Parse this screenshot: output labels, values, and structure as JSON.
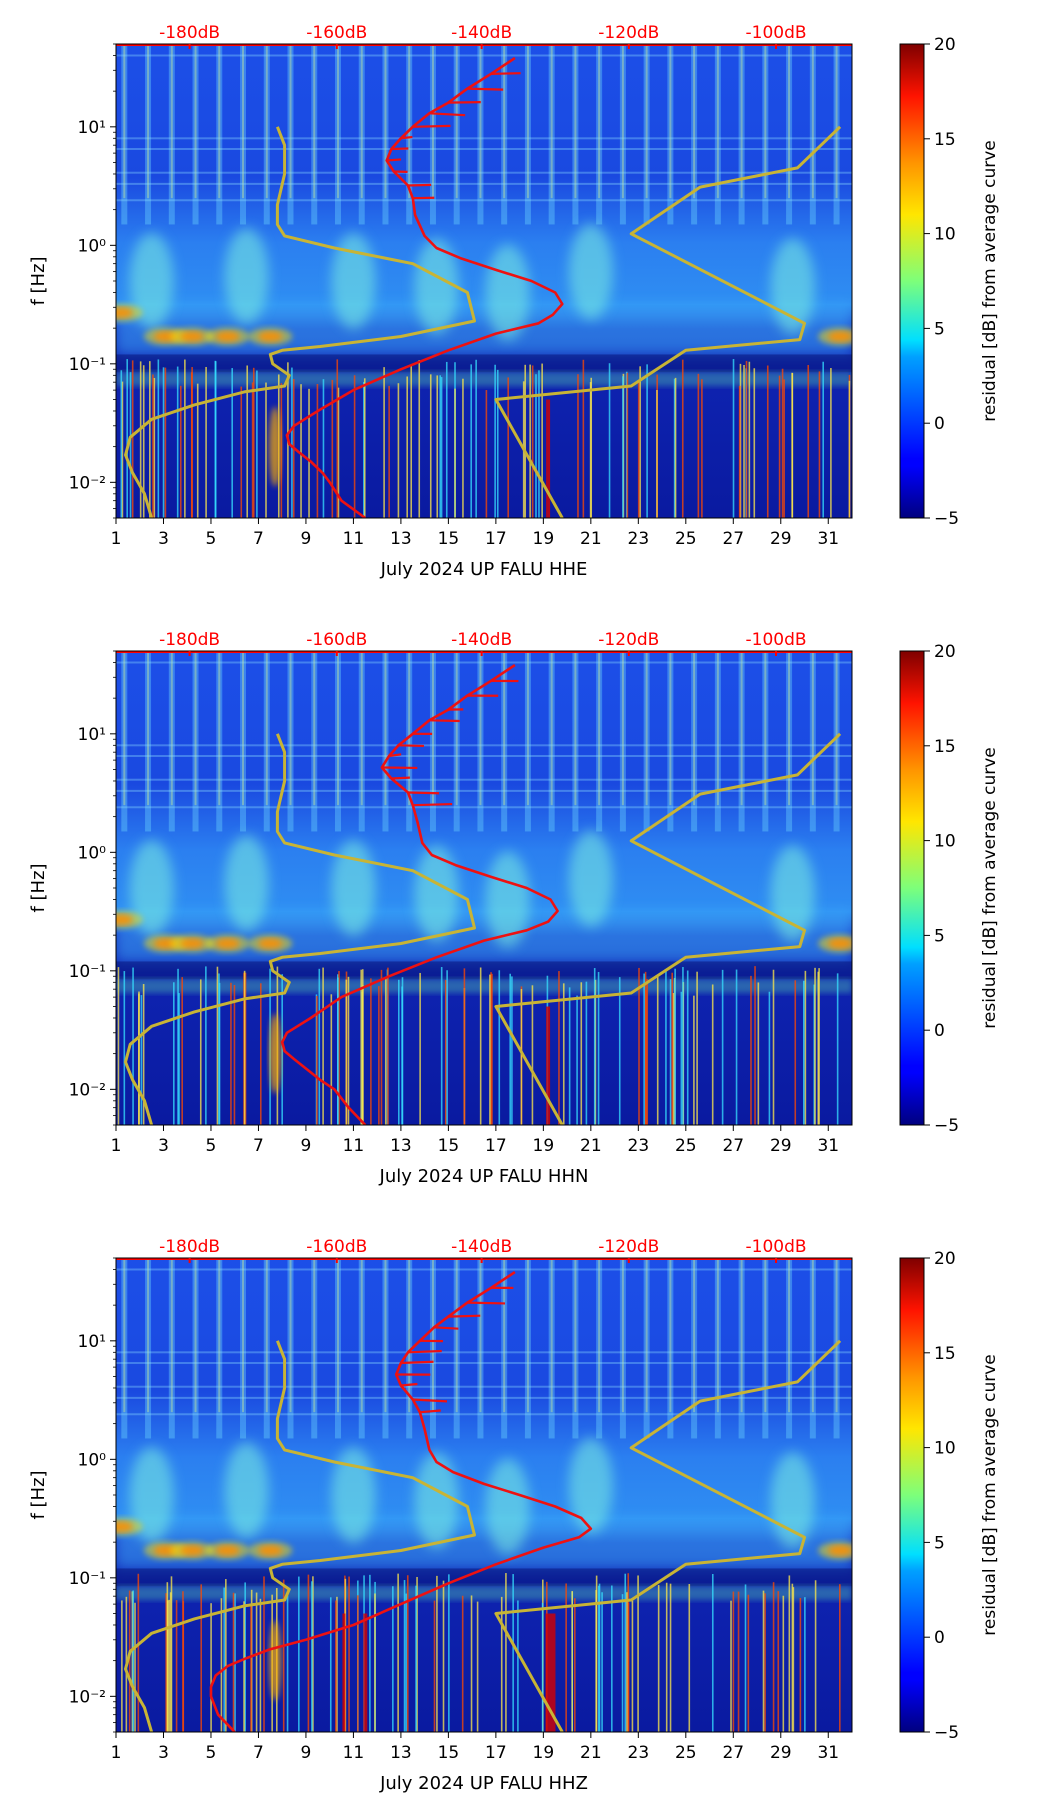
{
  "colors": {
    "db_scale": "#ff0000",
    "red_curve": "#ee1111",
    "model_curve": "#c8b435",
    "axis": "#000000"
  },
  "colormap": "jet",
  "chart_data": [
    {
      "type": "heatmap",
      "component": "HHE",
      "xlabel": "July 2024 UP FALU  HHE",
      "ylabel": "f [Hz]",
      "x_ticks": [
        1,
        3,
        5,
        7,
        9,
        11,
        13,
        15,
        17,
        19,
        21,
        23,
        25,
        27,
        29,
        31
      ],
      "xlim": [
        1,
        32
      ],
      "ylim": [
        0.005,
        50
      ],
      "y_ticks": [
        {
          "value": 0.01,
          "label": "10⁻²"
        },
        {
          "value": 0.1,
          "label": "10⁻¹"
        },
        {
          "value": 1,
          "label": "10⁰"
        },
        {
          "value": 10,
          "label": "10¹"
        }
      ],
      "top_axis": {
        "labels": [
          "-180dB",
          "-160dB",
          "-140dB",
          "-120dB",
          "-100dB"
        ],
        "positions_day": [
          4.1,
          10.3,
          16.4,
          22.6,
          28.8
        ]
      },
      "colorbar": {
        "label": "residual [dB] from average curve",
        "range": [
          -5,
          20
        ],
        "ticks": [
          -5,
          0,
          5,
          10,
          15,
          20
        ]
      },
      "red_curve": {
        "day": [
          11.5,
          10.5,
          10,
          9.7,
          9.2,
          8.7,
          8.3,
          8.2,
          8.5,
          9.5,
          11,
          13,
          15,
          17,
          18.8,
          19.4,
          19.8,
          19.5,
          18.5,
          17,
          15.5,
          14.5,
          14,
          13.6,
          13.5,
          13.3,
          12.7,
          12.4,
          12.6,
          13,
          13.5,
          14.2,
          15,
          15.8,
          16.8,
          17.8
        ],
        "freq": [
          0.005,
          0.007,
          0.01,
          0.012,
          0.015,
          0.018,
          0.021,
          0.025,
          0.03,
          0.04,
          0.06,
          0.09,
          0.13,
          0.18,
          0.22,
          0.26,
          0.32,
          0.4,
          0.5,
          0.62,
          0.78,
          0.95,
          1.2,
          1.8,
          2.5,
          3.2,
          4.2,
          5.2,
          6.5,
          8,
          10,
          13,
          16,
          21,
          28,
          38
        ]
      },
      "model_curves": [
        {
          "day": [
            2.5,
            2.2,
            1.7,
            1.4,
            1.6,
            2.5,
            4.3,
            6.4,
            8.1,
            8.3,
            7.6,
            7.5,
            8,
            9.6,
            13,
            16.1,
            15.8,
            13.5,
            10.2,
            8.1,
            7.8,
            7.8,
            8.1,
            8.1,
            7.8
          ],
          "freq": [
            0.005,
            0.008,
            0.012,
            0.017,
            0.024,
            0.034,
            0.045,
            0.058,
            0.065,
            0.08,
            0.1,
            0.12,
            0.13,
            0.14,
            0.17,
            0.23,
            0.4,
            0.7,
            0.95,
            1.2,
            1.5,
            2.2,
            4,
            7,
            10
          ]
        },
        {
          "day": [
            19.8,
            17,
            22.7,
            25,
            29.8,
            30,
            22.7,
            25.6,
            29.7,
            31.5
          ],
          "freq": [
            0.005,
            0.05,
            0.065,
            0.13,
            0.16,
            0.22,
            1.25,
            3.1,
            4.5,
            10
          ]
        }
      ]
    },
    {
      "type": "heatmap",
      "component": "HHN",
      "xlabel": "July 2024 UP FALU  HHN",
      "ylabel": "f [Hz]",
      "x_ticks": [
        1,
        3,
        5,
        7,
        9,
        11,
        13,
        15,
        17,
        19,
        21,
        23,
        25,
        27,
        29,
        31
      ],
      "xlim": [
        1,
        32
      ],
      "ylim": [
        0.005,
        50
      ],
      "y_ticks": [
        {
          "value": 0.01,
          "label": "10⁻²"
        },
        {
          "value": 0.1,
          "label": "10⁻¹"
        },
        {
          "value": 1,
          "label": "10⁰"
        },
        {
          "value": 10,
          "label": "10¹"
        }
      ],
      "top_axis": {
        "labels": [
          "-180dB",
          "-160dB",
          "-140dB",
          "-120dB",
          "-100dB"
        ],
        "positions_day": [
          4.1,
          10.3,
          16.4,
          22.6,
          28.8
        ]
      },
      "colorbar": {
        "label": "residual [dB] from average curve",
        "range": [
          -5,
          20
        ],
        "ticks": [
          -5,
          0,
          5,
          10,
          15,
          20
        ]
      },
      "red_curve": {
        "day": [
          11.5,
          10.8,
          10.2,
          9.6,
          9.0,
          8.5,
          8.1,
          8.0,
          8.2,
          9.2,
          10.5,
          12.5,
          14.5,
          16.5,
          18.3,
          19.2,
          19.6,
          19.3,
          18.3,
          16.8,
          15.3,
          14.3,
          13.9,
          13.7,
          13.5,
          13.3,
          12.6,
          12.2,
          12.5,
          12.9,
          13.5,
          14.2,
          15,
          15.8,
          16.8,
          17.8
        ],
        "freq": [
          0.005,
          0.007,
          0.01,
          0.012,
          0.015,
          0.018,
          0.021,
          0.025,
          0.03,
          0.04,
          0.06,
          0.09,
          0.13,
          0.18,
          0.22,
          0.26,
          0.32,
          0.4,
          0.5,
          0.62,
          0.78,
          0.95,
          1.2,
          1.8,
          2.5,
          3.2,
          4.2,
          5.2,
          6.5,
          8,
          10,
          13,
          16,
          21,
          28,
          38
        ]
      },
      "model_curves": [
        {
          "day": [
            2.5,
            2.2,
            1.7,
            1.4,
            1.6,
            2.5,
            4.3,
            6.4,
            8.1,
            8.3,
            7.6,
            7.5,
            8,
            9.6,
            13,
            16.1,
            15.8,
            13.5,
            10.2,
            8.1,
            7.8,
            7.8,
            8.1,
            8.1,
            7.8
          ],
          "freq": [
            0.005,
            0.008,
            0.012,
            0.017,
            0.024,
            0.034,
            0.045,
            0.058,
            0.065,
            0.08,
            0.1,
            0.12,
            0.13,
            0.14,
            0.17,
            0.23,
            0.4,
            0.7,
            0.95,
            1.2,
            1.5,
            2.2,
            4,
            7,
            10
          ]
        },
        {
          "day": [
            19.8,
            17,
            22.7,
            25,
            29.8,
            30,
            22.7,
            25.6,
            29.7,
            31.5
          ],
          "freq": [
            0.005,
            0.05,
            0.065,
            0.13,
            0.16,
            0.22,
            1.25,
            3.1,
            4.5,
            10
          ]
        }
      ]
    },
    {
      "type": "heatmap",
      "component": "HHZ",
      "xlabel": "July 2024 UP FALU  HHZ",
      "ylabel": "f [Hz]",
      "x_ticks": [
        1,
        3,
        5,
        7,
        9,
        11,
        13,
        15,
        17,
        19,
        21,
        23,
        25,
        27,
        29,
        31
      ],
      "xlim": [
        1,
        32
      ],
      "ylim": [
        0.005,
        50
      ],
      "y_ticks": [
        {
          "value": 0.01,
          "label": "10⁻²"
        },
        {
          "value": 0.1,
          "label": "10⁻¹"
        },
        {
          "value": 1,
          "label": "10⁰"
        },
        {
          "value": 10,
          "label": "10¹"
        }
      ],
      "top_axis": {
        "labels": [
          "-180dB",
          "-160dB",
          "-140dB",
          "-120dB",
          "-100dB"
        ],
        "positions_day": [
          4.1,
          10.3,
          16.4,
          22.6,
          28.8
        ]
      },
      "colorbar": {
        "label": "residual [dB] from average curve",
        "range": [
          -5,
          20
        ],
        "ticks": [
          -5,
          0,
          5,
          10,
          15,
          20
        ]
      },
      "red_curve": {
        "day": [
          6.0,
          5.3,
          5.0,
          5.0,
          5.2,
          5.7,
          6.5,
          7.5,
          9.0,
          11,
          13,
          15,
          17,
          19,
          20.5,
          21,
          20.6,
          19.5,
          18,
          16.5,
          15.2,
          14.5,
          14.2,
          14.0,
          13.8,
          13.5,
          13,
          12.8,
          13,
          13.3,
          13.8,
          14.4,
          15,
          15.8,
          16.8,
          17.8
        ],
        "freq": [
          0.005,
          0.007,
          0.01,
          0.012,
          0.015,
          0.018,
          0.021,
          0.025,
          0.03,
          0.04,
          0.06,
          0.09,
          0.13,
          0.18,
          0.22,
          0.26,
          0.32,
          0.4,
          0.5,
          0.62,
          0.78,
          0.95,
          1.2,
          1.8,
          2.5,
          3.2,
          4.2,
          5.2,
          6.5,
          8,
          10,
          13,
          16,
          21,
          28,
          38
        ]
      },
      "model_curves": [
        {
          "day": [
            2.5,
            2.2,
            1.7,
            1.4,
            1.6,
            2.5,
            4.3,
            6.4,
            8.1,
            8.3,
            7.6,
            7.5,
            8,
            9.6,
            13,
            16.1,
            15.8,
            13.5,
            10.2,
            8.1,
            7.8,
            7.8,
            8.1,
            8.1,
            7.8
          ],
          "freq": [
            0.005,
            0.008,
            0.012,
            0.017,
            0.024,
            0.034,
            0.045,
            0.058,
            0.065,
            0.08,
            0.1,
            0.12,
            0.13,
            0.14,
            0.17,
            0.23,
            0.4,
            0.7,
            0.95,
            1.2,
            1.5,
            2.2,
            4,
            7,
            10
          ]
        },
        {
          "day": [
            19.8,
            17,
            22.7,
            25,
            29.8,
            30,
            22.7,
            25.6,
            29.7,
            31.5
          ],
          "freq": [
            0.005,
            0.05,
            0.065,
            0.13,
            0.16,
            0.22,
            1.25,
            3.1,
            4.5,
            10
          ]
        }
      ]
    }
  ]
}
